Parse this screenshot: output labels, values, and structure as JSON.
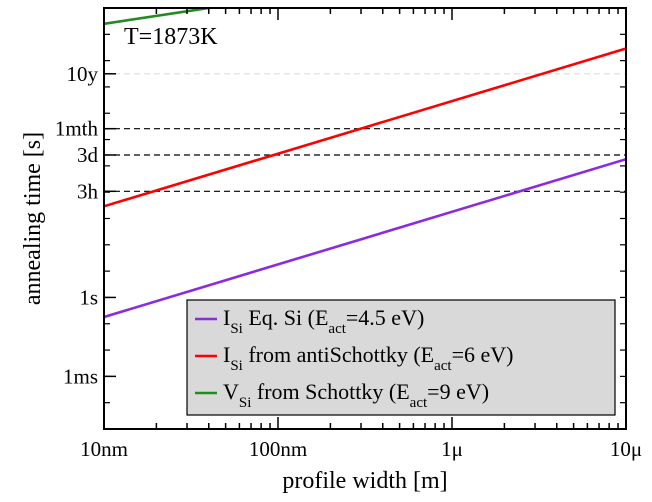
{
  "chart_data": {
    "type": "line",
    "title": "",
    "annotation": "T=1873K",
    "xlabel": "profile width [m]",
    "ylabel": "annealing time [s]",
    "xscale": "log",
    "yscale": "log",
    "xlim": [
      1e-08,
      1e-05
    ],
    "ylim": [
      1e-05,
      100000000000.0
    ],
    "grid": false,
    "legend_position": "bottom-right",
    "x_ticks": [
      {
        "value": 1e-08,
        "label": "10nm"
      },
      {
        "value": 1e-07,
        "label": "100nm"
      },
      {
        "value": 1e-06,
        "label": "1μ"
      },
      {
        "value": 1e-05,
        "label": "10μ"
      }
    ],
    "y_ticks": [
      {
        "value": 0.001,
        "label": "1ms"
      },
      {
        "value": 1,
        "label": "1s"
      },
      {
        "value": 10800,
        "label": "3h"
      },
      {
        "value": 259200,
        "label": "3d"
      },
      {
        "value": 2592000,
        "label": "1mth"
      },
      {
        "value": 315360000,
        "label": "10y"
      }
    ],
    "reference_lines": [
      {
        "value": 10800,
        "label": "3h",
        "style": "dashed",
        "color": "#000000"
      },
      {
        "value": 259200,
        "label": "3d",
        "style": "dashed",
        "color": "#000000"
      },
      {
        "value": 2592000,
        "label": "1mth",
        "style": "dashed",
        "color": "#000000"
      },
      {
        "value": 315360000,
        "label": "10y",
        "style": "dashed",
        "color": "#dddddd"
      }
    ],
    "series": [
      {
        "name_main": "I",
        "name_sub": "Si",
        "name_rest": " Eq. Si (E",
        "name_sub2": "act",
        "name_tail": "=4.5 eV)",
        "color": "#8a2be2",
        "x": [
          1e-08,
          1e-05
        ],
        "y": [
          0.18,
          180000.0
        ]
      },
      {
        "name_main": "I",
        "name_sub": "Si",
        "name_rest": " from antiSchottky (E",
        "name_sub2": "act",
        "name_tail": "=6 eV)",
        "color": "#ff0000",
        "x": [
          1e-08,
          1e-05
        ],
        "y": [
          2900,
          2900000000.0
        ]
      },
      {
        "name_main": "V",
        "name_sub": "Si",
        "name_rest": " from Schottky (E",
        "name_sub2": "act",
        "name_tail": "=9 eV)",
        "color": "#228b22",
        "x": [
          1e-08,
          3.8e-06
        ],
        "y": [
          25000000000.0,
          9500000000000.0
        ]
      }
    ]
  }
}
